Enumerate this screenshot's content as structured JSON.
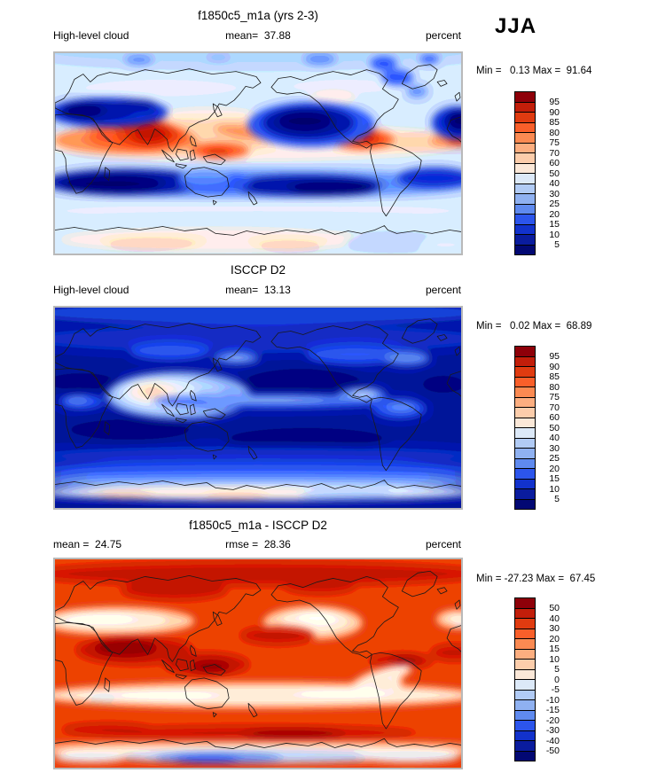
{
  "season_label": "JJA",
  "palette_top_to_bottom": [
    "#8e0009",
    "#c21e0a",
    "#e03b10",
    "#f95f2a",
    "#fb8a52",
    "#fcae80",
    "#fccdab",
    "#fbe8d8",
    "#dce9f8",
    "#b1cbf5",
    "#8fb1f1",
    "#5f8aef",
    "#2c55ec",
    "#1232cc",
    "#0a1c9e",
    "#020873"
  ],
  "panels": [
    {
      "title": "f1850c5_m1a (yrs 2-3)",
      "left_label": "High-level cloud",
      "center_label": "mean=  37.88",
      "right_label": "percent",
      "minmax_label": "Min =   0.13 Max =  91.64",
      "colorbar": {
        "labels": [
          "95",
          "90",
          "85",
          "80",
          "75",
          "70",
          "60",
          "50",
          "40",
          "30",
          "25",
          "20",
          "15",
          "10",
          "5"
        ],
        "colors": [
          "#8e0009",
          "#c21e0a",
          "#e03b10",
          "#f95f2a",
          "#fb8a52",
          "#fcae80",
          "#fccdab",
          "#fbe8d8",
          "#dce9f8",
          "#b1cbf5",
          "#8fb1f1",
          "#5f8aef",
          "#2c55ec",
          "#1232cc",
          "#0a1c9e",
          "#020873"
        ]
      }
    },
    {
      "title": "ISCCP D2",
      "left_label": "High-level cloud",
      "center_label": "mean=  13.13",
      "right_label": "percent",
      "minmax_label": "Min =   0.02 Max =  68.89",
      "colorbar": {
        "labels": [
          "95",
          "90",
          "85",
          "80",
          "75",
          "70",
          "60",
          "50",
          "40",
          "30",
          "25",
          "20",
          "15",
          "10",
          "5"
        ],
        "colors": [
          "#8e0009",
          "#c21e0a",
          "#e03b10",
          "#f95f2a",
          "#fb8a52",
          "#fcae80",
          "#fccdab",
          "#fbe8d8",
          "#dce9f8",
          "#b1cbf5",
          "#8fb1f1",
          "#5f8aef",
          "#2c55ec",
          "#1232cc",
          "#0a1c9e",
          "#020873"
        ]
      }
    },
    {
      "title": "f1850c5_m1a - ISCCP D2",
      "left_label": "mean =  24.75",
      "center_label": "rmse =  28.36",
      "right_label": "percent",
      "minmax_label": "Min = -27.23 Max =  67.45",
      "colorbar": {
        "labels": [
          "50",
          "40",
          "30",
          "20",
          "15",
          "10",
          "5",
          "0",
          "-5",
          "-10",
          "-15",
          "-20",
          "-30",
          "-40",
          "-50"
        ],
        "colors": [
          "#8e0009",
          "#c21e0a",
          "#e03b10",
          "#f95f2a",
          "#fb8a52",
          "#fcae80",
          "#fccdab",
          "#fbe8d8",
          "#dce9f8",
          "#b1cbf5",
          "#8fb1f1",
          "#5f8aef",
          "#2c55ec",
          "#1232cc",
          "#0a1c9e",
          "#020873"
        ]
      }
    }
  ],
  "chart_data": [
    {
      "type": "heatmap",
      "projection": "global filled-contour map, cylindrical equidistant, lon 0-360E, lat 90N-90S",
      "title": "f1850c5_m1a (yrs 2-3)",
      "variable": "High-level cloud",
      "units": "percent",
      "season": "JJA",
      "stats": {
        "mean": 37.88,
        "min": 0.13,
        "max": 91.64
      },
      "contour_levels": [
        5,
        10,
        15,
        20,
        25,
        30,
        40,
        50,
        60,
        70,
        75,
        80,
        85,
        90,
        95
      ],
      "palette_top_to_bottom": [
        "#8e0009",
        "#c21e0a",
        "#e03b10",
        "#f95f2a",
        "#fb8a52",
        "#fcae80",
        "#fccdab",
        "#fbe8d8",
        "#dce9f8",
        "#b1cbf5",
        "#8fb1f1",
        "#5f8aef",
        "#2c55ec",
        "#1232cc",
        "#0a1c9e",
        "#020873"
      ],
      "legend_position": "right",
      "notable_features": [
        "maxima 75-95% over India / Bay of Bengal monsoon region, Maritime Continent and Central America ITCZ",
        "minima below 10% over Mediterranean-Caspian region, subtropical NE Pacific, N Atlantic and the southern subtropical ocean band",
        "moderate 30-50% at high northern latitudes; 50-70% over Antarctica interior"
      ]
    },
    {
      "type": "heatmap",
      "projection": "global filled-contour map, cylindrical equidistant, lon 0-360E, lat 90N-90S",
      "title": "ISCCP D2",
      "variable": "High-level cloud",
      "units": "percent",
      "season": "JJA",
      "stats": {
        "mean": 13.13,
        "min": 0.02,
        "max": 68.89
      },
      "contour_levels": [
        5,
        10,
        15,
        20,
        25,
        30,
        40,
        50,
        60,
        70,
        75,
        80,
        85,
        90,
        95
      ],
      "palette_top_to_bottom": [
        "#8e0009",
        "#c21e0a",
        "#e03b10",
        "#f95f2a",
        "#fb8a52",
        "#fcae80",
        "#fccdab",
        "#fbe8d8",
        "#dce9f8",
        "#b1cbf5",
        "#8fb1f1",
        "#5f8aef",
        "#2c55ec",
        "#1232cc",
        "#0a1c9e",
        "#020873"
      ],
      "legend_position": "right",
      "notable_features": [
        "mostly below 15% globally (dark blue)",
        "local maximum 50-70% over India / SE Asia monsoon region with narrow 20-40% ITCZ band across the Pacific to Central America",
        "40-60% band along the Antarctic margin"
      ]
    },
    {
      "type": "heatmap",
      "projection": "global filled-contour map, cylindrical equidistant, lon 0-360E, lat 90N-90S",
      "title": "f1850c5_m1a - ISCCP D2",
      "variable": "High-level cloud difference",
      "units": "percent",
      "season": "JJA",
      "stats": {
        "mean": 24.75,
        "rmse": 28.36,
        "min": -27.23,
        "max": 67.45
      },
      "contour_levels": [
        -50,
        -40,
        -30,
        -20,
        -15,
        -10,
        -5,
        0,
        5,
        10,
        15,
        20,
        30,
        40,
        50
      ],
      "palette_top_to_bottom": [
        "#8e0009",
        "#c21e0a",
        "#e03b10",
        "#f95f2a",
        "#fb8a52",
        "#fcae80",
        "#fccdab",
        "#fbe8d8",
        "#dce9f8",
        "#b1cbf5",
        "#8fb1f1",
        "#5f8aef",
        "#2c55ec",
        "#1232cc",
        "#0a1c9e",
        "#020873"
      ],
      "legend_position": "right",
      "notable_features": [
        "widespread positive bias of +20 to +50% (model too cloudy), darkest over Arabia/India, Maritime Continent, tropical Atlantic and ~60S",
        "near-zero white bands along the northern subtropics (Sahara-Mediterranean, NE Pacific) and southern subtropics (~30S)",
        "negative bias -5 to -20% along the Antarctic coastal margin"
      ]
    }
  ]
}
